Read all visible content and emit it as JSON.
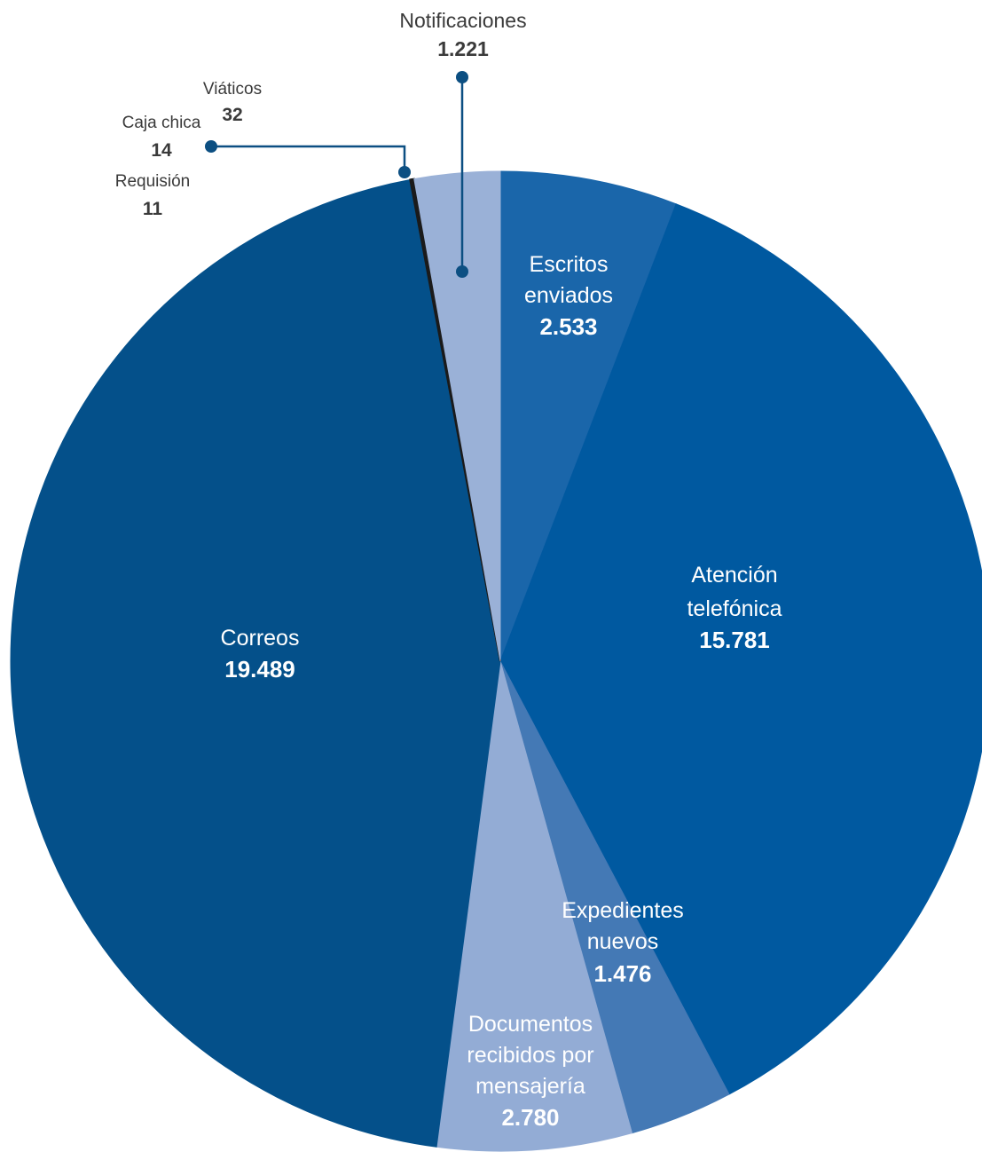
{
  "chart_data": {
    "type": "pie",
    "title": "",
    "slices": [
      {
        "key": "escritos",
        "label_lines": [
          "Escritos",
          "enviados"
        ],
        "value_label": "2.533",
        "value": 2533,
        "color": "#1a66aa"
      },
      {
        "key": "atencion",
        "label_lines": [
          "Atención",
          "telefónica"
        ],
        "value_label": "15.781",
        "value": 15781,
        "color": "#0059a0"
      },
      {
        "key": "expedientes",
        "label_lines": [
          "Expedientes",
          "nuevos"
        ],
        "value_label": "1.476",
        "value": 1476,
        "color": "#4479b5"
      },
      {
        "key": "documentos",
        "label_lines": [
          "Documentos",
          "recibidos por",
          "mensajería"
        ],
        "value_label": "2.780",
        "value": 2780,
        "color": "#93acd5"
      },
      {
        "key": "correos",
        "label_lines": [
          "Correos"
        ],
        "value_label": "19.489",
        "value": 19489,
        "color": "#04508a"
      },
      {
        "key": "requisicion",
        "label_lines": [
          "Requisión"
        ],
        "value_label": "11",
        "value": 11,
        "color": "#1b1b1b"
      },
      {
        "key": "caja",
        "label_lines": [
          "Caja chica"
        ],
        "value_label": "14",
        "value": 14,
        "color": "#1b1b1b"
      },
      {
        "key": "viaticos",
        "label_lines": [
          "Viáticos"
        ],
        "value_label": "32",
        "value": 32,
        "color": "#1b1b1b"
      },
      {
        "key": "notificaciones",
        "label_lines": [
          "Notificaciones"
        ],
        "value_label": "1.221",
        "value": 1221,
        "color": "#9ab1d7"
      }
    ],
    "leader_color": "#0c4f82"
  }
}
